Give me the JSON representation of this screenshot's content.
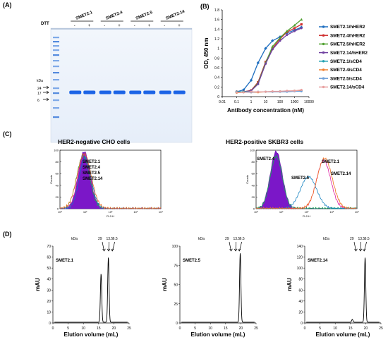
{
  "panels": {
    "a": {
      "label": "(A)",
      "dtt_label": "DTT",
      "kda_label": "kDa",
      "marker_labels": [
        "24",
        "17",
        "6"
      ],
      "lanes": [
        "SMET2.1",
        "SMET2.4",
        "SMET2.5",
        "SMET2.14"
      ],
      "signs": [
        "-",
        "+"
      ]
    },
    "b": {
      "label": "(B)"
    },
    "c": {
      "label": "(C)",
      "left_title": "HER2-negative CHO cells",
      "right_title": "HER2-positive SKBR3 cells",
      "left_labels": [
        {
          "text": "SMET2.1",
          "color": "#e020a0"
        },
        {
          "text": "SMET2.4",
          "color": "#10b050"
        },
        {
          "text": "SMET2.5",
          "color": "#1080c0"
        },
        {
          "text": "SMET2.14",
          "color": "#f07020"
        }
      ],
      "right_labels": [
        {
          "text": "SMET2.4",
          "color": "#10b050"
        },
        {
          "text": "SMET2.1",
          "color": "#e020a0"
        },
        {
          "text": "SMET2.5",
          "color": "#1080c0"
        },
        {
          "text": "SMET2.14",
          "color": "#f07020"
        }
      ],
      "ylabel": "Counts",
      "xlabel": "FL2-H",
      "xticks": [
        "10⁰",
        "10¹",
        "10²",
        "10³",
        "10⁴"
      ],
      "yticks": [
        "0",
        "20",
        "40",
        "60",
        "80",
        "100"
      ]
    },
    "d": {
      "label": "(D)",
      "kda_label": "kDa",
      "markers": [
        "29",
        "13.5",
        "6.5"
      ],
      "xlabel": "Elution volume (mL)",
      "ylabel": "mAU"
    }
  },
  "chart_data": [
    {
      "type": "line",
      "panel": "B",
      "xlabel": "Antibody concentration (nM)",
      "ylabel": "OD, 450 nm",
      "xscale": "log",
      "xlim": [
        0.01,
        10000
      ],
      "ylim": [
        0,
        1.8
      ],
      "xticks": [
        "0.01",
        "0.1",
        "1",
        "10",
        "100",
        "1000",
        "10000"
      ],
      "yticks": [
        "0",
        "0.2",
        "0.4",
        "0.6",
        "0.8",
        "1",
        "1.2",
        "1.4",
        "1.6",
        "1.8"
      ],
      "legend_position": "right",
      "x": [
        0.1,
        0.3,
        1,
        3,
        10,
        30,
        100,
        300,
        1000,
        3000
      ],
      "series": [
        {
          "name": "SMET2.1/hHER2",
          "color": "#1f6fc0",
          "values": [
            0.1,
            0.14,
            0.34,
            0.7,
            1.0,
            1.16,
            1.24,
            1.32,
            1.38,
            1.44
          ]
        },
        {
          "name": "SMET2.4/hHER2",
          "color": "#d03030",
          "values": [
            0.1,
            0.1,
            0.13,
            0.3,
            0.72,
            1.0,
            1.2,
            1.34,
            1.42,
            1.5
          ]
        },
        {
          "name": "SMET2.5/hHER2",
          "color": "#50a030",
          "values": [
            0.1,
            0.1,
            0.12,
            0.28,
            0.7,
            1.04,
            1.22,
            1.36,
            1.48,
            1.6
          ]
        },
        {
          "name": "SMET2.14/hHER2",
          "color": "#7040a0",
          "values": [
            0.1,
            0.1,
            0.12,
            0.26,
            0.68,
            0.98,
            1.16,
            1.28,
            1.36,
            1.42
          ]
        },
        {
          "name": "SMET2.1/sCD4",
          "color": "#20a0b0",
          "values": [
            0.1,
            0.1,
            0.1,
            0.1,
            0.1,
            0.1,
            0.11,
            0.11,
            0.12,
            0.12
          ]
        },
        {
          "name": "SMET2.4/sCD4",
          "color": "#f08030",
          "values": [
            0.08,
            0.09,
            0.09,
            0.09,
            0.1,
            0.1,
            0.1,
            0.11,
            0.12,
            0.13
          ]
        },
        {
          "name": "SMET2.5/sCD4",
          "color": "#6fa0d8",
          "values": [
            0.09,
            0.09,
            0.09,
            0.1,
            0.1,
            0.1,
            0.1,
            0.1,
            0.11,
            0.11
          ]
        },
        {
          "name": "SMET2.14/sCD4",
          "color": "#e8a0a0",
          "values": [
            0.09,
            0.09,
            0.1,
            0.1,
            0.1,
            0.11,
            0.11,
            0.12,
            0.12,
            0.14
          ]
        }
      ]
    },
    {
      "type": "line",
      "panel": "D",
      "label": "SMET2.1",
      "xlim": [
        0,
        25
      ],
      "ylim": [
        0,
        70
      ],
      "xticks": [
        "0",
        "5",
        "10",
        "15",
        "20",
        "25"
      ],
      "yticks": [
        "0",
        "10",
        "20",
        "30",
        "40",
        "50",
        "60",
        "70"
      ],
      "peaks": [
        {
          "x": 15.8,
          "y": 44
        },
        {
          "x": 18.2,
          "y": 59
        }
      ]
    },
    {
      "type": "line",
      "panel": "D",
      "label": "SMET2.5",
      "xlim": [
        0,
        25
      ],
      "ylim": [
        0,
        100
      ],
      "xticks": [
        "0",
        "5",
        "10",
        "15",
        "20",
        "25"
      ],
      "yticks": [
        "0",
        "25",
        "50",
        "75",
        "100"
      ],
      "peaks": [
        {
          "x": 19.8,
          "y": 90
        }
      ]
    },
    {
      "type": "line",
      "panel": "D",
      "label": "SMET2.14",
      "xlim": [
        0,
        25
      ],
      "ylim": [
        0,
        140
      ],
      "xticks": [
        "0",
        "5",
        "10",
        "15",
        "20",
        "25"
      ],
      "yticks": [
        "0",
        "20",
        "40",
        "60",
        "80",
        "100",
        "120",
        "140"
      ],
      "peaks": [
        {
          "x": 15.6,
          "y": 5
        },
        {
          "x": 19.8,
          "y": 118
        }
      ]
    }
  ]
}
